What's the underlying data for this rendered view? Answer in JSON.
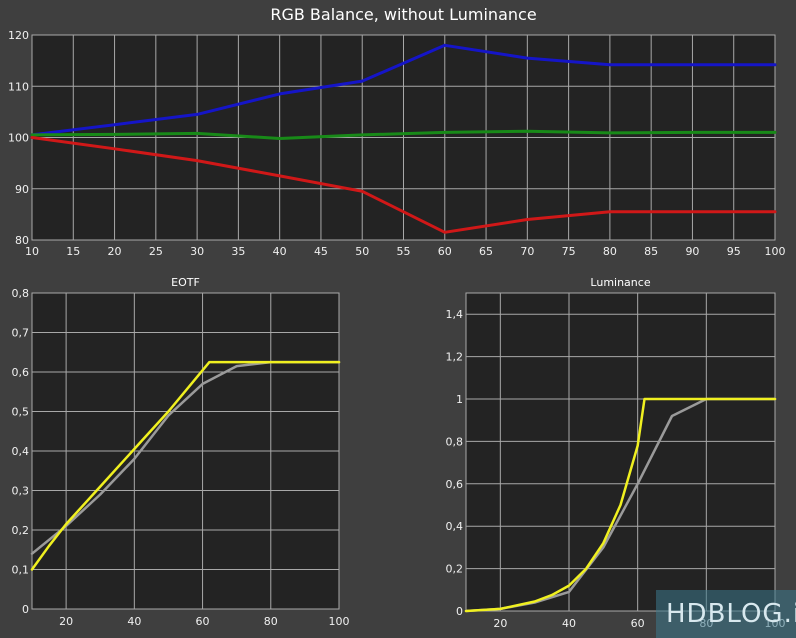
{
  "colors": {
    "background": "#3f3f3f",
    "plot_area": "#232323",
    "grid": "#a8a8a8",
    "blue": "#1515c8",
    "green": "#188a18",
    "red": "#d01818",
    "yellow": "#f0f020",
    "gray": "#9a9a9a"
  },
  "watermark": "HDBLOG.it",
  "chart_data": [
    {
      "type": "line",
      "title": "RGB Balance, without Luminance",
      "xlabel": "",
      "ylabel": "",
      "xlim": [
        10,
        100
      ],
      "ylim": [
        80,
        120
      ],
      "x_ticks": [
        10,
        15,
        20,
        25,
        30,
        35,
        40,
        45,
        50,
        55,
        60,
        65,
        70,
        75,
        80,
        85,
        90,
        95,
        100
      ],
      "y_ticks": [
        80,
        90,
        100,
        110,
        120
      ],
      "grid": true,
      "series": [
        {
          "color": "blue",
          "x": [
            10,
            20,
            30,
            40,
            50,
            60,
            70,
            80,
            90,
            100
          ],
          "y": [
            100.5,
            102.5,
            104.5,
            108.5,
            111,
            118,
            115.5,
            114.2,
            114.2,
            114.2
          ]
        },
        {
          "color": "green",
          "x": [
            10,
            20,
            30,
            40,
            50,
            60,
            70,
            80,
            90,
            100
          ],
          "y": [
            100.5,
            100.6,
            100.8,
            99.8,
            100.5,
            101.0,
            101.2,
            100.9,
            101.0,
            101.0
          ]
        },
        {
          "color": "red",
          "x": [
            10,
            20,
            30,
            40,
            50,
            60,
            70,
            80,
            90,
            100
          ],
          "y": [
            100,
            97.8,
            95.5,
            92.5,
            89.5,
            81.5,
            84,
            85.5,
            85.5,
            85.5
          ]
        }
      ]
    },
    {
      "type": "line",
      "title": "EOTF",
      "xlabel": "",
      "ylabel": "",
      "xlim": [
        10,
        100
      ],
      "ylim": [
        0,
        0.8
      ],
      "x_ticks": [
        20,
        40,
        60,
        80,
        100
      ],
      "x_tick_labels": [
        "20",
        "40",
        "60",
        "80",
        "100"
      ],
      "y_ticks": [
        0,
        0.1,
        0.2,
        0.3,
        0.4,
        0.5,
        0.6,
        0.7,
        0.8
      ],
      "y_tick_labels": [
        "0",
        "0,1",
        "0,2",
        "0,3",
        "0,4",
        "0,5",
        "0,6",
        "0,7",
        "0,8"
      ],
      "grid": true,
      "series": [
        {
          "color": "gray",
          "x": [
            10,
            20,
            30,
            40,
            50,
            60,
            70,
            80,
            90,
            100
          ],
          "y": [
            0.14,
            0.21,
            0.29,
            0.38,
            0.49,
            0.57,
            0.615,
            0.625,
            0.625,
            0.625
          ]
        },
        {
          "color": "yellow",
          "x": [
            10,
            15,
            20,
            30,
            40,
            50,
            62,
            70,
            80,
            90,
            100
          ],
          "y": [
            0.1,
            0.16,
            0.215,
            0.31,
            0.405,
            0.5,
            0.625,
            0.625,
            0.625,
            0.625,
            0.625
          ]
        }
      ]
    },
    {
      "type": "line",
      "title": "Luminance",
      "xlabel": "",
      "ylabel": "",
      "xlim": [
        10,
        100
      ],
      "ylim": [
        0,
        1.5
      ],
      "x_ticks": [
        20,
        40,
        60,
        80,
        100
      ],
      "x_tick_labels": [
        "20",
        "40",
        "60",
        "80",
        "100"
      ],
      "y_ticks": [
        0,
        0.2,
        0.4,
        0.6,
        0.8,
        1.0,
        1.2,
        1.4
      ],
      "y_tick_labels": [
        "0",
        "0,2",
        "0,4",
        "0,6",
        "0,8",
        "1",
        "1,2",
        "1,4"
      ],
      "grid": true,
      "series": [
        {
          "color": "gray",
          "x": [
            10,
            20,
            30,
            40,
            50,
            60,
            70,
            80,
            90,
            100
          ],
          "y": [
            0.0,
            0.01,
            0.04,
            0.09,
            0.3,
            0.6,
            0.92,
            1.0,
            1.0,
            1.0
          ]
        },
        {
          "color": "yellow",
          "x": [
            10,
            20,
            30,
            35,
            40,
            45,
            50,
            55,
            60,
            62,
            70,
            80,
            90,
            100
          ],
          "y": [
            0.0,
            0.01,
            0.045,
            0.075,
            0.12,
            0.2,
            0.32,
            0.5,
            0.78,
            1.0,
            1.0,
            1.0,
            1.0,
            1.0
          ]
        }
      ]
    }
  ]
}
